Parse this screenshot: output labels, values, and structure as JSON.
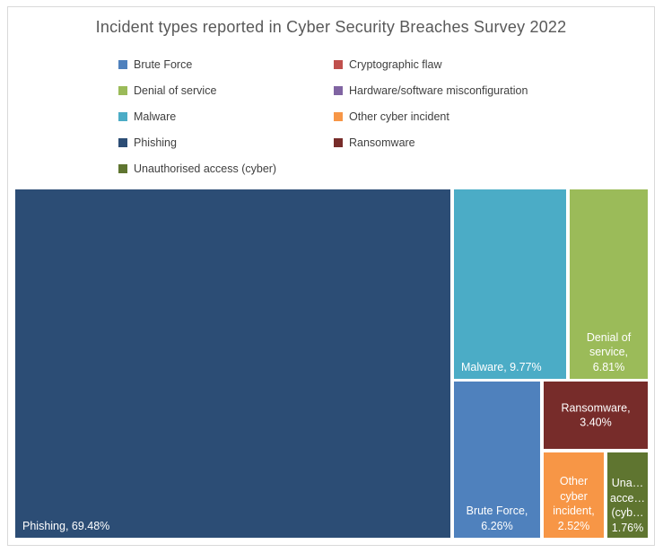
{
  "chart_data": {
    "type": "treemap",
    "title": "Incident types reported in Cyber Security Breaches Survey 2022",
    "unit": "percent",
    "legend_position": "top",
    "legend": [
      {
        "label": "Brute Force",
        "color": "#4F81BD"
      },
      {
        "label": "Cryptographic flaw",
        "color": "#C0504D"
      },
      {
        "label": "Denial of service",
        "color": "#9BBB59"
      },
      {
        "label": "Hardware/software misconfiguration",
        "color": "#8064A2"
      },
      {
        "label": "Malware",
        "color": "#4BACC6"
      },
      {
        "label": "Other cyber incident",
        "color": "#F79646"
      },
      {
        "label": "Phishing",
        "color": "#2C4D75"
      },
      {
        "label": "Ransomware",
        "color": "#772C2A"
      },
      {
        "label": "Unauthorised access (cyber)",
        "color": "#5F7530"
      }
    ],
    "cells": [
      {
        "name": "Phishing",
        "value": 69.48,
        "color": "#2C4D75",
        "data_label": "Phishing, 69.48%"
      },
      {
        "name": "Malware",
        "value": 9.77,
        "color": "#4BACC6",
        "data_label": "Malware, 9.77%"
      },
      {
        "name": "Denial of service",
        "value": 6.81,
        "color": "#9BBB59",
        "data_label": "Denial of\nservice,\n6.81%"
      },
      {
        "name": "Brute Force",
        "value": 6.26,
        "color": "#4F81BD",
        "data_label": "Brute Force,\n6.26%"
      },
      {
        "name": "Ransomware",
        "value": 3.4,
        "color": "#772C2A",
        "data_label": "Ransomware,\n3.40%"
      },
      {
        "name": "Other cyber incident",
        "value": 2.52,
        "color": "#F79646",
        "data_label": "Other\ncyber\nincident,\n2.52%"
      },
      {
        "name": "Unauthorised access (cyber)",
        "value": 1.76,
        "color": "#5F7530",
        "data_label": "Una…\nacce…\n(cyb…\n1.76%"
      }
    ]
  },
  "colors": {
    "title_text": "#595959",
    "legend_text": "#404040",
    "cell_label_text": "#FFFFFF",
    "frame_border": "#D9D9D9",
    "background": "#FFFFFF"
  }
}
